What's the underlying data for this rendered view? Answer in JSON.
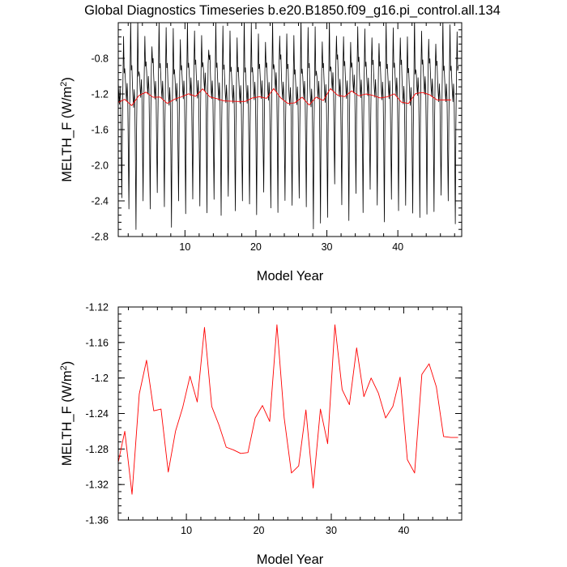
{
  "figure": {
    "title": "Global Diagnostics Timeseries b.e20.B1850.f09_g16.pi_control.all.134"
  },
  "chart_data": [
    {
      "type": "line",
      "xlabel": "Model Year",
      "ylabel": "MELTH_F (W/m",
      "ylabel_superscript": "2",
      "ylabel_suffix": ")",
      "xlim": [
        0.6,
        49
      ],
      "ylim": [
        -2.8,
        -0.4
      ],
      "xticks": [
        10,
        20,
        30,
        40
      ],
      "yticks": [
        -2.8,
        -2.4,
        -2.0,
        -1.6,
        -1.2,
        -0.8
      ],
      "grid": false,
      "series": [
        {
          "color": "#000000",
          "x_start": 0.6,
          "x_step": 0.0833333,
          "month_cycle": [
            -0.8,
            -0.95,
            -1.05,
            -0.85,
            -1.0,
            -1.6,
            -2.1,
            -1.3,
            -0.75,
            -0.6,
            -0.7,
            -0.65
          ],
          "values": [
            -0.8,
            -0.95,
            -1.05,
            -0.85,
            -1.0,
            -1.6,
            -2.25,
            -1.3,
            -0.75,
            -0.6,
            -0.7,
            -0.65
          ]
        },
        {
          "color": "#ff0000",
          "x": [
            0.6,
            1.5,
            2.5,
            3.5,
            4.5,
            5.5,
            6.5,
            7.5,
            8.5,
            9.5,
            10.5,
            11.5,
            12.5,
            13.5,
            14.5,
            15.5,
            16.5,
            17.5,
            18.5,
            19.5,
            20.5,
            21.5,
            22.5,
            23.5,
            24.5,
            25.5,
            26.5,
            27.5,
            28.5,
            29.5,
            30.5,
            31.5,
            32.5,
            33.5,
            34.5,
            35.5,
            36.5,
            37.5,
            38.5,
            39.5,
            40.5,
            41.5,
            42.5,
            43.5,
            44.5,
            45.5,
            46.5,
            47.5
          ],
          "values": [
            -1.295,
            -1.26,
            -1.331,
            -1.218,
            -1.18,
            -1.237,
            -1.235,
            -1.306,
            -1.26,
            -1.233,
            -1.198,
            -1.227,
            -1.143,
            -1.232,
            -1.253,
            -1.278,
            -1.281,
            -1.285,
            -1.284,
            -1.245,
            -1.231,
            -1.249,
            -1.14,
            -1.245,
            -1.307,
            -1.299,
            -1.236,
            -1.324,
            -1.235,
            -1.274,
            -1.14,
            -1.213,
            -1.23,
            -1.166,
            -1.221,
            -1.2,
            -1.217,
            -1.245,
            -1.232,
            -1.199,
            -1.292,
            -1.307,
            -1.196,
            -1.184,
            -1.21,
            -1.266,
            -1.267,
            -1.267
          ]
        }
      ]
    },
    {
      "type": "line",
      "xlabel": "Model Year",
      "ylabel": "MELTH_F (W/m",
      "ylabel_superscript": "2",
      "ylabel_suffix": ")",
      "xlim": [
        0.6,
        48
      ],
      "ylim": [
        -1.36,
        -1.12
      ],
      "xticks": [
        10,
        20,
        30,
        40
      ],
      "yticks": [
        -1.36,
        -1.32,
        -1.28,
        -1.24,
        -1.2,
        -1.16,
        -1.12
      ],
      "grid": false,
      "series": [
        {
          "color": "#ff0000",
          "x": [
            0.6,
            1.5,
            2.5,
            3.5,
            4.5,
            5.5,
            6.5,
            7.5,
            8.5,
            9.5,
            10.5,
            11.5,
            12.5,
            13.5,
            14.5,
            15.5,
            16.5,
            17.5,
            18.5,
            19.5,
            20.5,
            21.5,
            22.5,
            23.5,
            24.5,
            25.5,
            26.5,
            27.5,
            28.5,
            29.5,
            30.5,
            31.5,
            32.5,
            33.5,
            34.5,
            35.5,
            36.5,
            37.5,
            38.5,
            39.5,
            40.5,
            41.5,
            42.5,
            43.5,
            44.5,
            45.5,
            46.5,
            47.5
          ],
          "values": [
            -1.295,
            -1.26,
            -1.331,
            -1.218,
            -1.18,
            -1.237,
            -1.235,
            -1.306,
            -1.26,
            -1.233,
            -1.198,
            -1.227,
            -1.143,
            -1.232,
            -1.253,
            -1.278,
            -1.281,
            -1.285,
            -1.284,
            -1.245,
            -1.231,
            -1.249,
            -1.14,
            -1.245,
            -1.307,
            -1.299,
            -1.236,
            -1.324,
            -1.235,
            -1.274,
            -1.14,
            -1.213,
            -1.23,
            -1.166,
            -1.221,
            -1.2,
            -1.217,
            -1.245,
            -1.232,
            -1.199,
            -1.292,
            -1.307,
            -1.196,
            -1.184,
            -1.21,
            -1.266,
            -1.267,
            -1.267
          ]
        }
      ]
    }
  ]
}
